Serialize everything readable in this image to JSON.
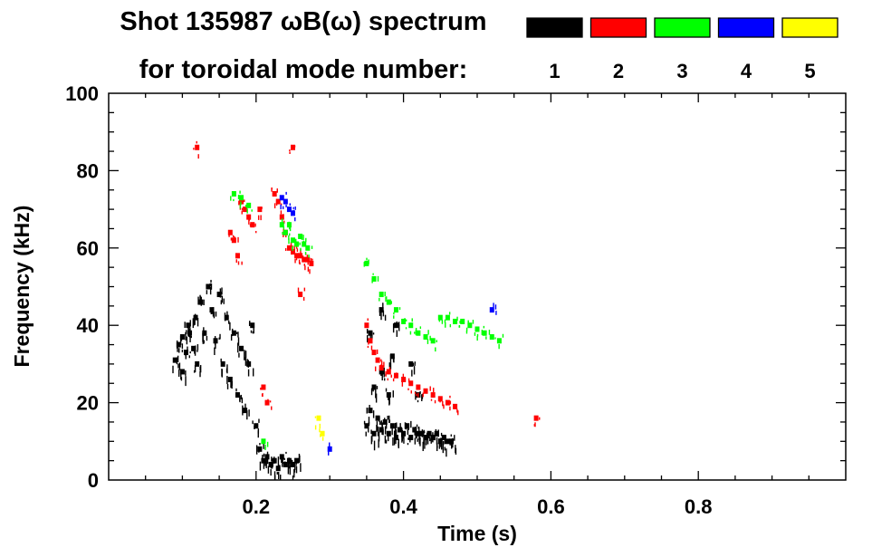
{
  "chart_data": {
    "type": "heatmap",
    "title": "Shot 135987 ωB(ω) spectrum",
    "subtitle": "for toroidal mode number:",
    "xlabel": "Time (s)",
    "ylabel": "Frequency (kHz)",
    "xlim": [
      0.0,
      1.0
    ],
    "ylim": [
      0,
      100
    ],
    "xticks": [
      0.2,
      0.4,
      0.6,
      0.8
    ],
    "xtick_labels": [
      "0.2",
      "0.4",
      "0.6",
      "0.8"
    ],
    "yticks": [
      0,
      20,
      40,
      60,
      80,
      100
    ],
    "ytick_labels": [
      "0",
      "20",
      "40",
      "60",
      "80",
      "100"
    ],
    "legend": {
      "placement": "top-right",
      "entries": [
        {
          "label": "1",
          "color": "#000000"
        },
        {
          "label": "2",
          "color": "#ff0000"
        },
        {
          "label": "3",
          "color": "#00ff00"
        },
        {
          "label": "4",
          "color": "#0000ff"
        },
        {
          "label": "5",
          "color": "#ffff00"
        }
      ]
    },
    "series": [
      {
        "name": "n=1",
        "mode": 1,
        "color": "#000000",
        "points": [
          [
            0.09,
            31
          ],
          [
            0.095,
            35
          ],
          [
            0.1,
            37
          ],
          [
            0.105,
            33
          ],
          [
            0.11,
            38
          ],
          [
            0.115,
            34
          ],
          [
            0.12,
            30
          ],
          [
            0.1,
            28
          ],
          [
            0.108,
            40
          ],
          [
            0.118,
            42
          ],
          [
            0.125,
            46
          ],
          [
            0.13,
            38
          ],
          [
            0.135,
            50
          ],
          [
            0.14,
            44
          ],
          [
            0.145,
            36
          ],
          [
            0.15,
            48
          ],
          [
            0.155,
            30
          ],
          [
            0.16,
            42
          ],
          [
            0.165,
            26
          ],
          [
            0.17,
            38
          ],
          [
            0.175,
            22
          ],
          [
            0.18,
            34
          ],
          [
            0.185,
            18
          ],
          [
            0.19,
            30
          ],
          [
            0.195,
            40
          ],
          [
            0.2,
            14
          ],
          [
            0.205,
            8
          ],
          [
            0.21,
            5
          ],
          [
            0.215,
            6
          ],
          [
            0.22,
            4
          ],
          [
            0.225,
            5
          ],
          [
            0.23,
            3
          ],
          [
            0.235,
            6
          ],
          [
            0.24,
            4
          ],
          [
            0.245,
            5
          ],
          [
            0.25,
            4
          ],
          [
            0.255,
            5
          ],
          [
            0.35,
            14
          ],
          [
            0.355,
            18
          ],
          [
            0.36,
            12
          ],
          [
            0.365,
            16
          ],
          [
            0.37,
            13
          ],
          [
            0.375,
            15
          ],
          [
            0.38,
            12
          ],
          [
            0.385,
            14
          ],
          [
            0.39,
            11
          ],
          [
            0.395,
            13
          ],
          [
            0.4,
            12
          ],
          [
            0.405,
            14
          ],
          [
            0.41,
            11
          ],
          [
            0.415,
            13
          ],
          [
            0.42,
            12
          ],
          [
            0.425,
            12
          ],
          [
            0.43,
            11
          ],
          [
            0.435,
            12
          ],
          [
            0.44,
            11
          ],
          [
            0.445,
            12
          ],
          [
            0.45,
            10
          ],
          [
            0.455,
            11
          ],
          [
            0.46,
            10
          ],
          [
            0.465,
            10
          ],
          [
            0.36,
            24
          ],
          [
            0.37,
            28
          ],
          [
            0.38,
            22
          ],
          [
            0.355,
            38
          ],
          [
            0.37,
            44
          ],
          [
            0.385,
            32
          ],
          [
            0.39,
            40
          ],
          [
            0.41,
            30
          ],
          [
            0.42,
            22
          ]
        ]
      },
      {
        "name": "n=2",
        "mode": 2,
        "color": "#ff0000",
        "points": [
          [
            0.12,
            86
          ],
          [
            0.165,
            64
          ],
          [
            0.17,
            62
          ],
          [
            0.175,
            58
          ],
          [
            0.18,
            72
          ],
          [
            0.185,
            70
          ],
          [
            0.19,
            68
          ],
          [
            0.195,
            66
          ],
          [
            0.205,
            70
          ],
          [
            0.21,
            24
          ],
          [
            0.215,
            20
          ],
          [
            0.225,
            74
          ],
          [
            0.23,
            72
          ],
          [
            0.235,
            68
          ],
          [
            0.24,
            64
          ],
          [
            0.245,
            60
          ],
          [
            0.25,
            59
          ],
          [
            0.255,
            58
          ],
          [
            0.26,
            58
          ],
          [
            0.265,
            57
          ],
          [
            0.27,
            57
          ],
          [
            0.275,
            56
          ],
          [
            0.25,
            86
          ],
          [
            0.26,
            48
          ],
          [
            0.35,
            40
          ],
          [
            0.355,
            36
          ],
          [
            0.36,
            33
          ],
          [
            0.365,
            31
          ],
          [
            0.37,
            29
          ],
          [
            0.38,
            28
          ],
          [
            0.39,
            27
          ],
          [
            0.4,
            26
          ],
          [
            0.41,
            25
          ],
          [
            0.42,
            24
          ],
          [
            0.43,
            23
          ],
          [
            0.44,
            22
          ],
          [
            0.45,
            21
          ],
          [
            0.46,
            20
          ],
          [
            0.47,
            19
          ],
          [
            0.58,
            16
          ]
        ]
      },
      {
        "name": "n=3",
        "mode": 3,
        "color": "#00ff00",
        "points": [
          [
            0.17,
            74
          ],
          [
            0.18,
            73
          ],
          [
            0.19,
            71
          ],
          [
            0.235,
            66
          ],
          [
            0.24,
            64
          ],
          [
            0.245,
            66
          ],
          [
            0.25,
            62
          ],
          [
            0.255,
            61
          ],
          [
            0.26,
            63
          ],
          [
            0.265,
            61
          ],
          [
            0.27,
            60
          ],
          [
            0.35,
            56
          ],
          [
            0.36,
            52
          ],
          [
            0.37,
            48
          ],
          [
            0.38,
            46
          ],
          [
            0.39,
            44
          ],
          [
            0.4,
            41
          ],
          [
            0.41,
            40
          ],
          [
            0.42,
            38
          ],
          [
            0.43,
            37
          ],
          [
            0.44,
            36
          ],
          [
            0.45,
            42
          ],
          [
            0.46,
            42
          ],
          [
            0.47,
            41
          ],
          [
            0.48,
            41
          ],
          [
            0.49,
            40
          ],
          [
            0.5,
            39
          ],
          [
            0.51,
            38
          ],
          [
            0.52,
            37
          ],
          [
            0.53,
            36
          ],
          [
            0.21,
            10
          ]
        ]
      },
      {
        "name": "n=4",
        "mode": 4,
        "color": "#0000ff",
        "points": [
          [
            0.235,
            73
          ],
          [
            0.24,
            72
          ],
          [
            0.245,
            70
          ],
          [
            0.25,
            69
          ],
          [
            0.52,
            44
          ],
          [
            0.3,
            8
          ]
        ]
      },
      {
        "name": "n=5",
        "mode": 5,
        "color": "#ffff00",
        "points": [
          [
            0.285,
            16
          ],
          [
            0.29,
            12
          ]
        ]
      }
    ]
  }
}
